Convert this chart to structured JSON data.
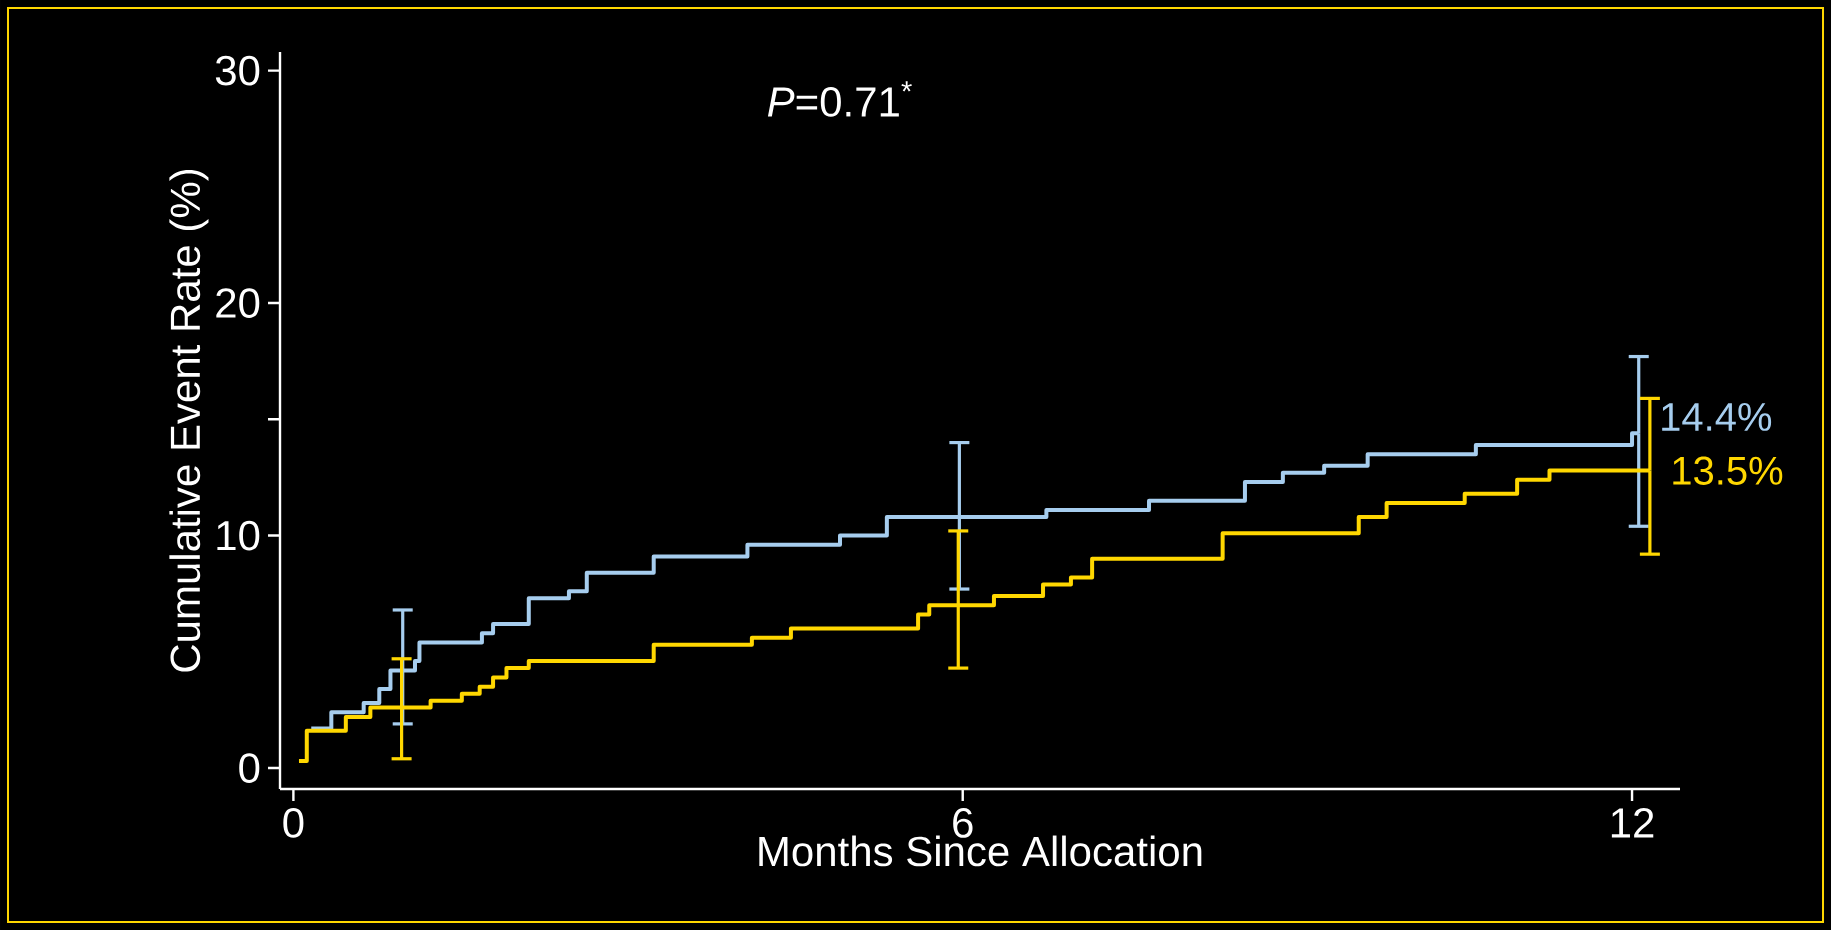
{
  "chart_data": {
    "type": "step",
    "xlabel": "Months Since Allocation",
    "ylabel": "Cumulative Event Rate (%)",
    "xlim": [
      -0.12,
      12.43
    ],
    "ylim": [
      -0.9,
      30.8
    ],
    "xticks": [
      0,
      6,
      12
    ],
    "yticks": [
      0,
      10,
      {
        "value": 15,
        "label": null
      },
      20,
      30
    ],
    "annotations": [
      "*P*=0.71$^{*}$",
      {
        "text": "14.4%",
        "x": 12.06,
        "y": 14.4
      },
      {
        "text": "13.5%",
        "x": 12.16,
        "y": 13.5
      }
    ],
    "series": [
      {
        "color": "#a6cdee",
        "x": [
          0.16,
          0.34,
          0.63,
          0.77,
          0.87,
          0.98,
          1.09,
          1.13,
          1.69,
          1.79,
          2.11,
          2.47,
          2.63,
          3.23,
          4.07,
          4.9,
          5.32,
          5.97,
          6.75,
          7.67,
          8.53,
          8.87,
          9.24,
          9.63,
          10.6,
          12.0,
          12.06
        ],
        "values": [
          1.7,
          2.4,
          2.8,
          3.4,
          4.2,
          4.2,
          4.6,
          5.4,
          5.8,
          6.2,
          7.3,
          7.6,
          8.4,
          9.1,
          9.6,
          10.0,
          10.8,
          10.8,
          11.1,
          11.5,
          12.3,
          12.7,
          13.0,
          13.5,
          13.9,
          14.4,
          14.4
        ],
        "errors": [
          null,
          null,
          null,
          null,
          null,
          [
            1.9,
            6.8
          ],
          null,
          null,
          null,
          null,
          null,
          null,
          null,
          null,
          null,
          null,
          null,
          [
            7.7,
            14.0
          ],
          null,
          null,
          null,
          null,
          null,
          null,
          null,
          null,
          [
            10.4,
            17.7
          ]
        ]
      },
      {
        "color": "#ffd700",
        "x": [
          0.05,
          0.12,
          0.47,
          0.69,
          0.97,
          1.23,
          1.51,
          1.67,
          1.79,
          1.91,
          2.11,
          3.23,
          4.11,
          4.46,
          5.6,
          5.7,
          5.96,
          6.28,
          6.72,
          6.97,
          7.16,
          8.33,
          9.55,
          9.8,
          10.5,
          10.97,
          11.26,
          12.16
        ],
        "values": [
          0.3,
          1.6,
          2.2,
          2.6,
          2.6,
          2.9,
          3.2,
          3.5,
          3.9,
          4.3,
          4.6,
          5.3,
          5.6,
          6.0,
          6.6,
          7.0,
          7.0,
          7.4,
          7.9,
          8.2,
          9.0,
          10.1,
          10.8,
          11.4,
          11.8,
          12.4,
          12.8,
          12.8
        ],
        "errors": [
          null,
          null,
          null,
          null,
          [
            0.4,
            4.7
          ],
          null,
          null,
          null,
          null,
          null,
          null,
          null,
          null,
          null,
          null,
          null,
          [
            4.3,
            10.2
          ],
          null,
          null,
          null,
          null,
          null,
          null,
          null,
          null,
          null,
          null,
          [
            9.2,
            15.9
          ]
        ]
      }
    ]
  }
}
